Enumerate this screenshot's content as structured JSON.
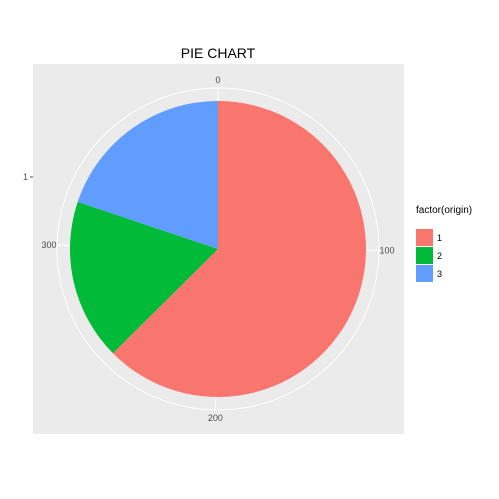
{
  "chart_data": {
    "type": "pie",
    "title": "PIE CHART",
    "categories": [
      "1",
      "2",
      "3"
    ],
    "values": [
      249,
      70,
      79
    ],
    "colors": [
      "#F8766D",
      "#00BA38",
      "#619CFF"
    ],
    "legend": {
      "title": "factor(origin)",
      "placement": "right",
      "labels": [
        "1",
        "2",
        "3"
      ]
    },
    "theta_ticks": [
      {
        "value": 0,
        "label": "0"
      },
      {
        "value": 100,
        "label": "100"
      },
      {
        "value": 200,
        "label": "200"
      },
      {
        "value": 300,
        "label": "300"
      }
    ],
    "theta_max": 398,
    "y_axis_tick": "1",
    "grid": true,
    "panel_background": "#EBEBEB",
    "grid_color": "#FFFFFF"
  }
}
